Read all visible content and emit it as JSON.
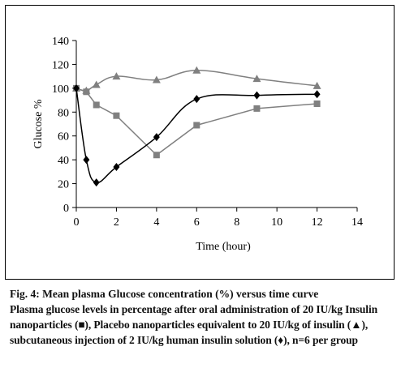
{
  "caption": {
    "title": "Fig. 4: Mean plasma Glucose concentration (%) versus time curve",
    "description": "Plasma glucose levels in percentage after oral administration of 20 IU/kg Insulin nanoparticles (■), Placebo nanoparticles equivalent to 20 IU/kg of insulin (▲), subcutaneous injection of 2 IU/kg human insulin solution (♦), n=6 per group"
  },
  "chart_data": {
    "type": "line",
    "xlabel": "Time (hour)",
    "ylabel": "Glucose %",
    "xlim": [
      0,
      14
    ],
    "ylim": [
      0,
      140
    ],
    "xticks": [
      0,
      2,
      4,
      6,
      8,
      10,
      12,
      14
    ],
    "yticks": [
      0,
      20,
      40,
      60,
      80,
      100,
      120,
      140
    ],
    "grid": false,
    "legend": "none",
    "series": [
      {
        "marker": "square",
        "color": "#808080",
        "smooth": false,
        "points": [
          [
            0,
            100
          ],
          [
            0.5,
            97
          ],
          [
            1,
            86
          ],
          [
            2,
            77
          ],
          [
            4,
            44
          ],
          [
            6,
            69
          ],
          [
            9,
            83
          ],
          [
            12,
            87
          ]
        ]
      },
      {
        "marker": "triangle",
        "color": "#808080",
        "smooth": true,
        "points": [
          [
            0,
            100
          ],
          [
            0.5,
            98
          ],
          [
            1,
            103
          ],
          [
            2,
            110
          ],
          [
            4,
            107
          ],
          [
            6,
            115
          ],
          [
            9,
            108
          ],
          [
            12,
            102
          ]
        ]
      },
      {
        "marker": "diamond",
        "color": "#000000",
        "smooth": true,
        "points": [
          [
            0,
            100
          ],
          [
            0.5,
            40
          ],
          [
            1,
            21
          ],
          [
            2,
            34
          ],
          [
            4,
            59
          ],
          [
            6,
            91
          ],
          [
            9,
            94
          ],
          [
            12,
            95
          ]
        ]
      }
    ]
  }
}
